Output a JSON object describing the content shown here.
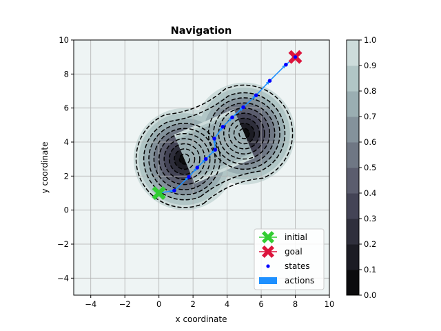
{
  "chart_data": {
    "type": "contour",
    "title": "Navigation",
    "xlabel": "x coordinate",
    "ylabel": "y coordinate",
    "xlim": [
      -5,
      10
    ],
    "ylim": [
      -5,
      10
    ],
    "xticks": [
      -4,
      -2,
      0,
      2,
      4,
      6,
      8,
      10
    ],
    "yticks": [
      -4,
      -2,
      0,
      2,
      4,
      6,
      8,
      10
    ],
    "grid": true,
    "legend_position": "lower-right",
    "legend": [
      {
        "label": "initial",
        "kind": "initial"
      },
      {
        "label": "goal",
        "kind": "goal"
      },
      {
        "label": "states",
        "kind": "states"
      },
      {
        "label": "actions",
        "kind": "actions"
      }
    ],
    "obstacles": [
      {
        "center": [
          1.5,
          3.0
        ],
        "sigma": 1.15
      },
      {
        "center": [
          5.0,
          4.5
        ],
        "sigma": 1.15
      }
    ],
    "contour_levels": [
      0,
      0.1,
      0.2,
      0.3,
      0.4,
      0.5,
      0.6,
      0.7,
      0.8,
      0.9,
      1.0
    ],
    "initial": [
      0,
      1
    ],
    "goal": [
      8,
      9
    ],
    "states": [
      [
        0.9,
        1.15
      ],
      [
        1.75,
        1.95
      ],
      [
        2.25,
        2.5
      ],
      [
        2.75,
        3.0
      ],
      [
        3.3,
        3.55
      ],
      [
        3.25,
        4.2
      ],
      [
        3.75,
        4.9
      ],
      [
        4.3,
        5.45
      ],
      [
        4.95,
        6.05
      ],
      [
        5.7,
        6.75
      ],
      [
        6.5,
        7.6
      ],
      [
        7.45,
        8.55
      ],
      [
        8.0,
        9.0
      ]
    ],
    "colorbar": {
      "ticks": [
        "0.0",
        "0.1",
        "0.2",
        "0.3",
        "0.4",
        "0.5",
        "0.6",
        "0.7",
        "0.8",
        "0.9",
        "1.0"
      ],
      "colors": [
        "#0b0b0d",
        "#1c1c24",
        "#2f2f3c",
        "#444456",
        "#5b5d6e",
        "#6f7784",
        "#84929b",
        "#9aaeb2",
        "#b1c6c6",
        "#cddcdb"
      ]
    },
    "colors": {
      "initial": "#32cd32",
      "goal": "#dc143c",
      "states": "#0000ff",
      "actions": "#1e90ff",
      "background": "#eef4f4",
      "grid": "#b0b0b0"
    }
  }
}
